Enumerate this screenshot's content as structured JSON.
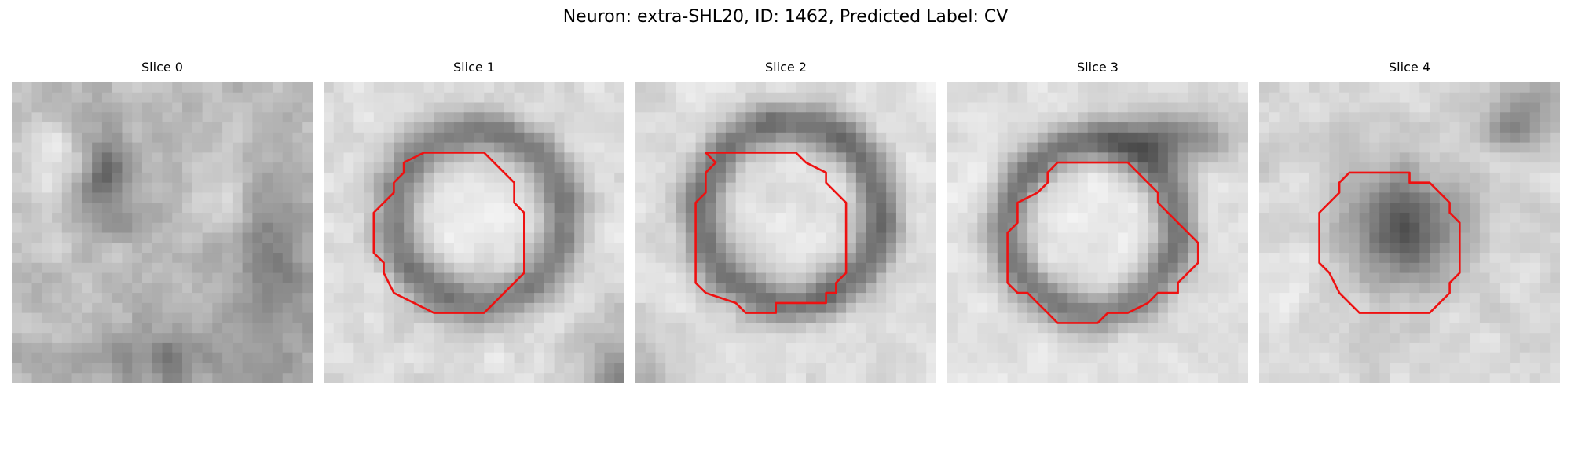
{
  "figure": {
    "title": "Neuron: extra-SHL20, ID: 1462, Predicted Label: CV"
  },
  "panels": [
    {
      "title": "Slice 0"
    },
    {
      "title": "Slice 1"
    },
    {
      "title": "Slice 2"
    },
    {
      "title": "Slice 3"
    },
    {
      "title": "Slice 4"
    }
  ],
  "colors": {
    "contour": "#ee1111",
    "background": "#ffffff"
  }
}
